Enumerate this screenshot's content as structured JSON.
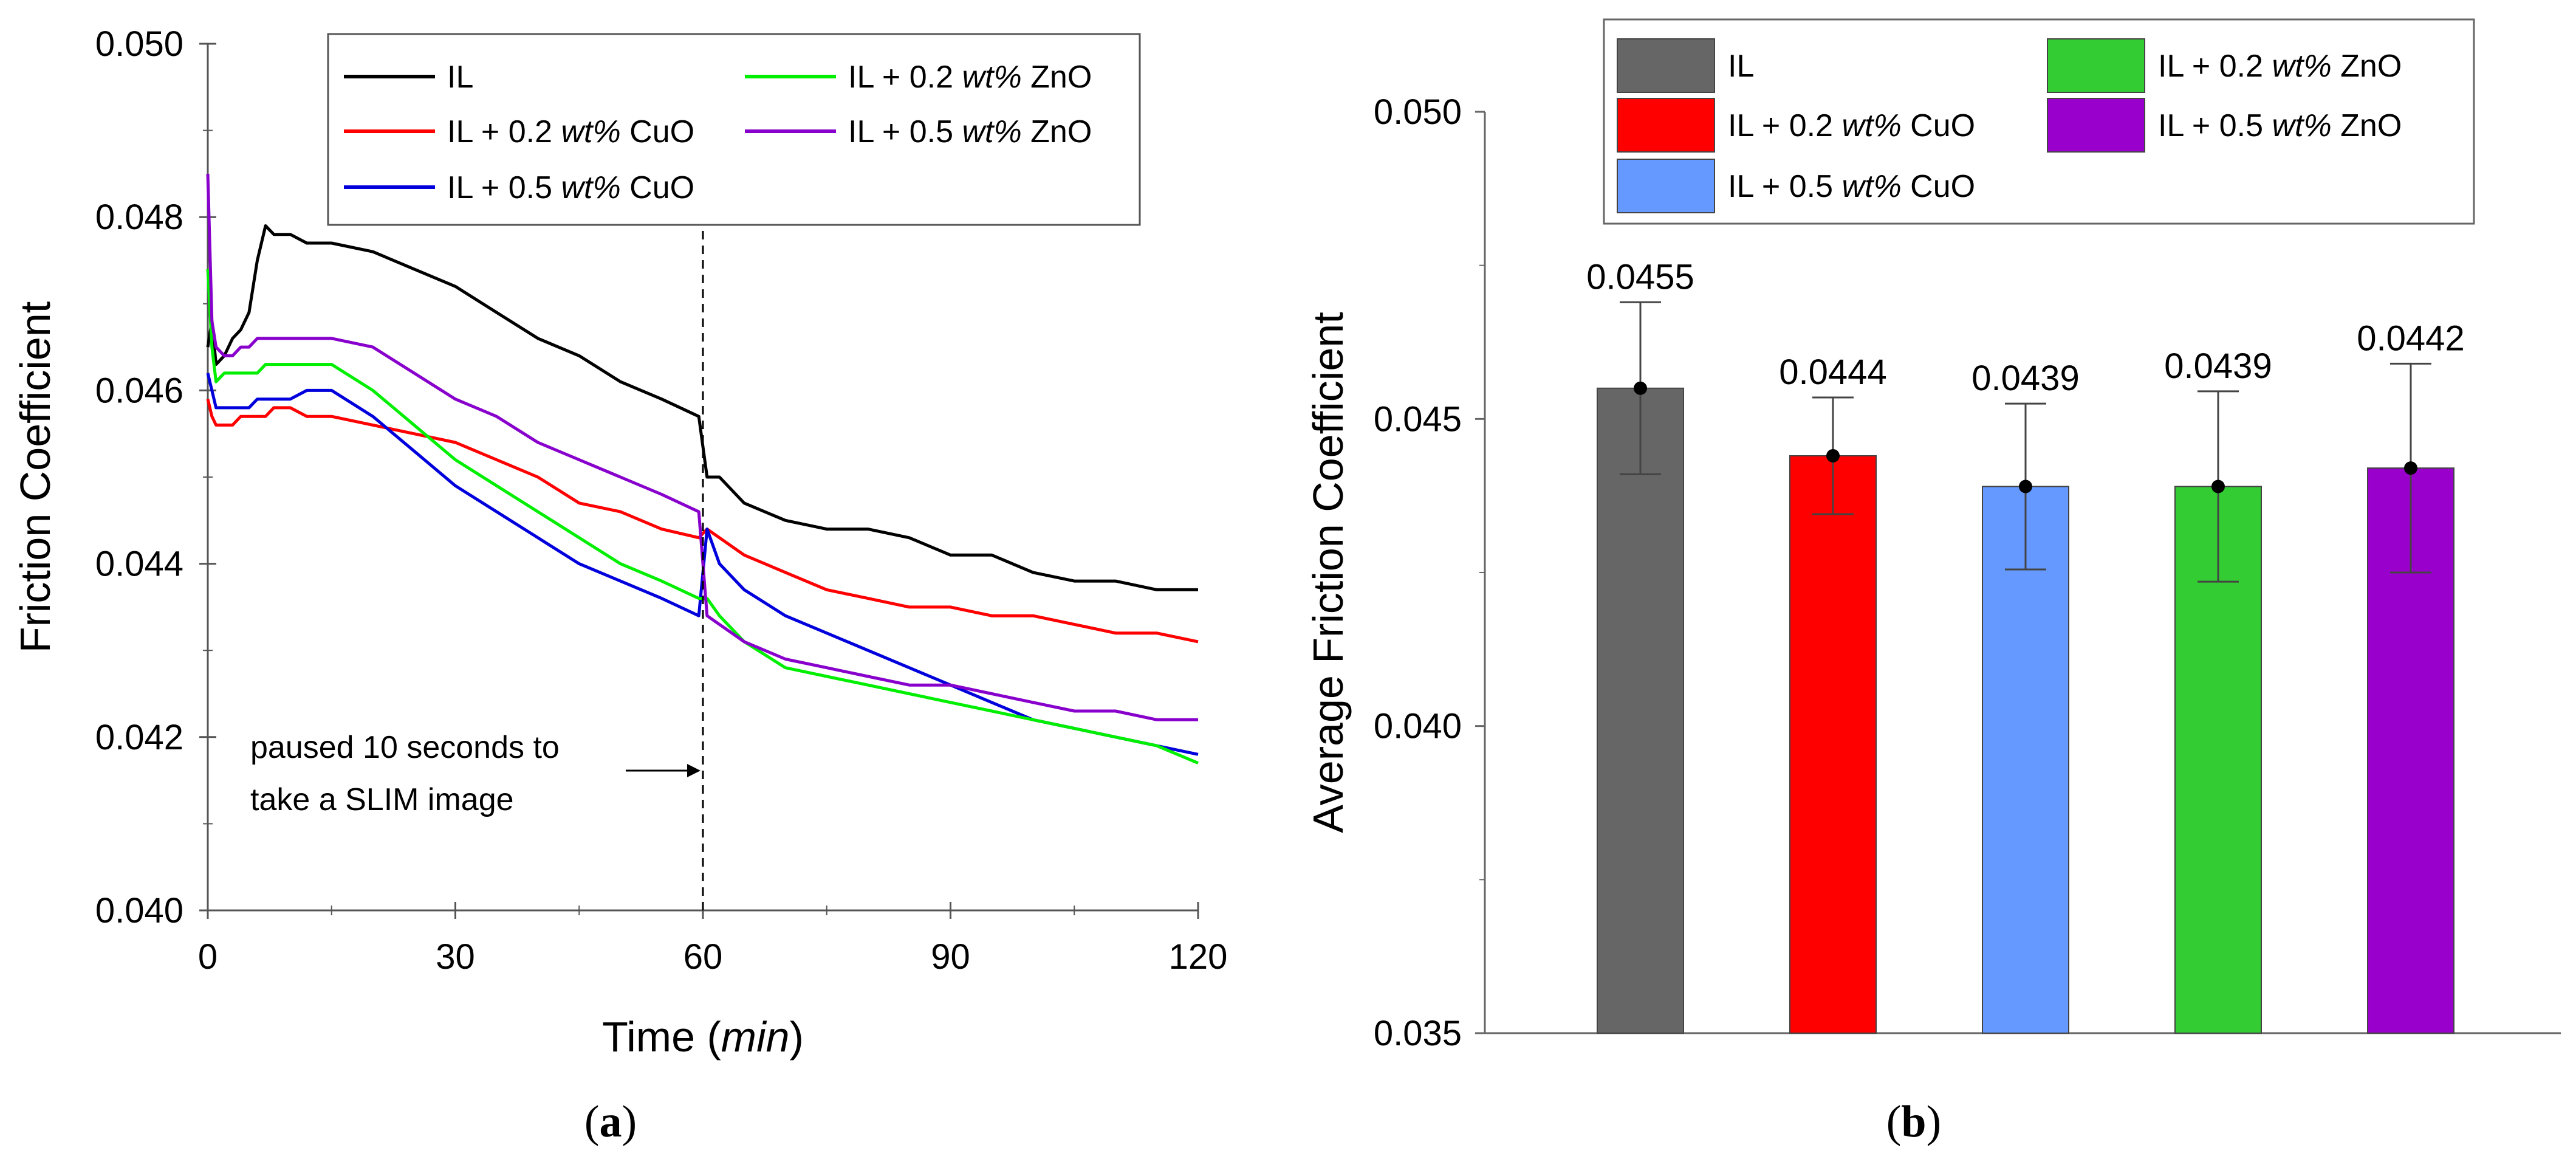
{
  "chart_data": [
    {
      "type": "line",
      "panel_label": "a",
      "ylabel": "Friction Coefficient",
      "xlabel": "Time (min)",
      "xlabel_parts": [
        "Time (",
        "min",
        ")"
      ],
      "xlim": [
        0,
        120
      ],
      "ylim": [
        0.04,
        0.05
      ],
      "x_ticks": [
        0,
        30,
        60,
        90,
        120
      ],
      "x_tick_labels": [
        "0",
        "30",
        "60",
        "90",
        "120"
      ],
      "y_ticks": [
        0.04,
        0.042,
        0.044,
        0.046,
        0.048,
        0.05
      ],
      "y_tick_labels": [
        "0.040",
        "0.042",
        "0.044",
        "0.046",
        "0.048",
        "0.050"
      ],
      "grid": false,
      "legend_position": "top-right",
      "annotation": {
        "lines": [
          "paused 10 seconds to",
          "take a SLIM image"
        ],
        "x": 60
      },
      "x": [
        0,
        0.5,
        1,
        2,
        3,
        4,
        5,
        6,
        7,
        8,
        10,
        12,
        15,
        20,
        25,
        30,
        35,
        40,
        45,
        50,
        55,
        59.5,
        60.5,
        62,
        65,
        70,
        75,
        80,
        85,
        90,
        95,
        100,
        105,
        110,
        115,
        120
      ],
      "series": [
        {
          "name": "IL",
          "legend_parts": [
            "IL"
          ],
          "color": "#000000",
          "values": [
            0.0465,
            0.0468,
            0.0463,
            0.0464,
            0.0466,
            0.0467,
            0.0469,
            0.0475,
            0.0479,
            0.0478,
            0.0478,
            0.0477,
            0.0477,
            0.0476,
            0.0474,
            0.0472,
            0.0469,
            0.0466,
            0.0464,
            0.0461,
            0.0459,
            0.0457,
            0.045,
            0.045,
            0.0447,
            0.0445,
            0.0444,
            0.0444,
            0.0443,
            0.0441,
            0.0441,
            0.0439,
            0.0438,
            0.0438,
            0.0437,
            0.0437
          ]
        },
        {
          "name": "IL + 0.2 wt% CuO",
          "legend_parts": [
            "IL + 0.2 ",
            "wt%",
            " CuO"
          ],
          "color": "#ff0000",
          "values": [
            0.0459,
            0.0457,
            0.0456,
            0.0456,
            0.0456,
            0.0457,
            0.0457,
            0.0457,
            0.0457,
            0.0458,
            0.0458,
            0.0457,
            0.0457,
            0.0456,
            0.0455,
            0.0454,
            0.0452,
            0.045,
            0.0447,
            0.0446,
            0.0444,
            0.0443,
            0.0444,
            0.0443,
            0.0441,
            0.0439,
            0.0437,
            0.0436,
            0.0435,
            0.0435,
            0.0434,
            0.0434,
            0.0433,
            0.0432,
            0.0432,
            0.0431
          ]
        },
        {
          "name": "IL + 0.5 wt% CuO",
          "legend_parts": [
            "IL + 0.5 ",
            "wt%",
            " CuO"
          ],
          "color": "#0000dd",
          "values": [
            0.0462,
            0.046,
            0.0458,
            0.0458,
            0.0458,
            0.0458,
            0.0458,
            0.0459,
            0.0459,
            0.0459,
            0.0459,
            0.046,
            0.046,
            0.0457,
            0.0453,
            0.0449,
            0.0446,
            0.0443,
            0.044,
            0.0438,
            0.0436,
            0.0434,
            0.0444,
            0.044,
            0.0437,
            0.0434,
            0.0432,
            0.043,
            0.0428,
            0.0426,
            0.0424,
            0.0422,
            0.0421,
            0.042,
            0.0419,
            0.0418
          ]
        },
        {
          "name": "IL + 0.2 wt% ZnO",
          "legend_parts": [
            "IL + 0.2 ",
            "wt%",
            " ZnO"
          ],
          "color": "#00ee00",
          "values": [
            0.0474,
            0.0465,
            0.0461,
            0.0462,
            0.0462,
            0.0462,
            0.0462,
            0.0462,
            0.0463,
            0.0463,
            0.0463,
            0.0463,
            0.0463,
            0.046,
            0.0456,
            0.0452,
            0.0449,
            0.0446,
            0.0443,
            0.044,
            0.0438,
            0.0436,
            0.0436,
            0.0434,
            0.0431,
            0.0428,
            0.0427,
            0.0426,
            0.0425,
            0.0424,
            0.0423,
            0.0422,
            0.0421,
            0.042,
            0.0419,
            0.0417
          ]
        },
        {
          "name": "IL + 0.5 wt% ZnO",
          "legend_parts": [
            "IL + 0.5 ",
            "wt%",
            " ZnO"
          ],
          "color": "#8800cc",
          "values": [
            0.0485,
            0.0468,
            0.0465,
            0.0464,
            0.0464,
            0.0465,
            0.0465,
            0.0466,
            0.0466,
            0.0466,
            0.0466,
            0.0466,
            0.0466,
            0.0465,
            0.0462,
            0.0459,
            0.0457,
            0.0454,
            0.0452,
            0.045,
            0.0448,
            0.0446,
            0.0434,
            0.0433,
            0.0431,
            0.0429,
            0.0428,
            0.0427,
            0.0426,
            0.0426,
            0.0425,
            0.0424,
            0.0423,
            0.0423,
            0.0422,
            0.0422
          ]
        }
      ]
    },
    {
      "type": "bar",
      "panel_label": "b",
      "ylabel": "Average Friction Coefficient",
      "ylim": [
        0.035,
        0.05
      ],
      "y_ticks": [
        0.035,
        0.04,
        0.045,
        0.05
      ],
      "y_tick_labels": [
        "0.035",
        "0.040",
        "0.045",
        "0.050"
      ],
      "grid": false,
      "legend_position": "top",
      "categories": [
        "IL",
        "IL + 0.2 wt% CuO",
        "IL + 0.5 wt% CuO",
        "IL + 0.2 wt% ZnO",
        "IL + 0.5 wt% ZnO"
      ],
      "legend_parts": [
        [
          "IL"
        ],
        [
          "IL + 0.2 ",
          "wt%",
          " CuO"
        ],
        [
          "IL + 0.5 ",
          "wt%",
          " CuO"
        ],
        [
          "IL + 0.2 ",
          "wt%",
          " ZnO"
        ],
        [
          "IL + 0.5 ",
          "wt%",
          " ZnO"
        ]
      ],
      "values": [
        0.0455,
        0.0444,
        0.0439,
        0.0439,
        0.0442
      ],
      "value_labels": [
        "0.0455",
        "0.0444",
        "0.0439",
        "0.0439",
        "0.0442"
      ],
      "error_bars": [
        0.0014,
        0.00095,
        0.00135,
        0.00155,
        0.0017
      ],
      "colors": [
        "#666666",
        "#ff0000",
        "#6699ff",
        "#33cc33",
        "#9900cc"
      ]
    }
  ]
}
